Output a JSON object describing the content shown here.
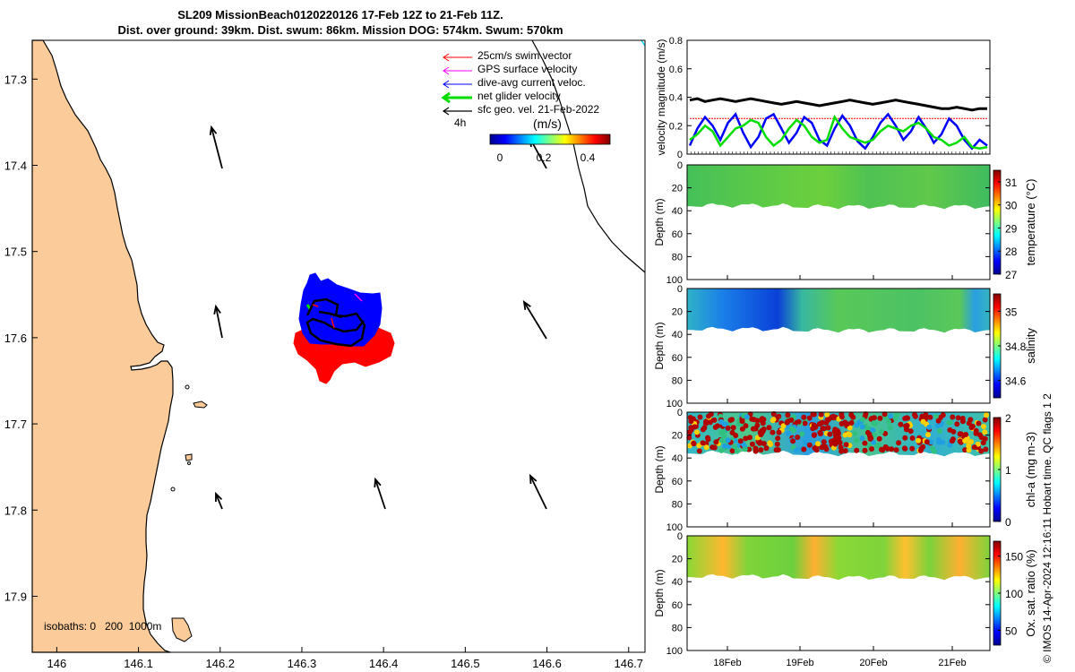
{
  "header": {
    "title_line1": "SL209 MissionBeach0120220126 17-Feb 12Z to 21-Feb 11Z.",
    "title_line2": "Dist. over ground: 39km. Dist. swum: 86km. Mission DOG: 574km. Swum: 570km"
  },
  "map": {
    "xticks": [
      "146",
      "146.1",
      "146.2",
      "146.3",
      "146.4",
      "146.5",
      "146.6",
      "146.7"
    ],
    "xtick_values": [
      146,
      146.1,
      146.2,
      146.3,
      146.4,
      146.5,
      146.6,
      146.7
    ],
    "yticks": [
      "17.3",
      "17.4",
      "17.5",
      "17.6",
      "17.7",
      "17.8",
      "17.9"
    ],
    "yticks_values": [
      17.3,
      17.4,
      17.5,
      17.6,
      17.7,
      17.8,
      17.9
    ],
    "legend": [
      {
        "label": "25cm/s swim vector",
        "color": "#ff0000"
      },
      {
        "label": "GPS surface velocity",
        "color": "#ff00ff"
      },
      {
        "label": "dive-avg current veloc.",
        "color": "#0000ff"
      },
      {
        "label": "net glider velocity",
        "color": "#00dd00"
      },
      {
        "label": "sfc geo. vel. 21-Feb-2022",
        "color": "#000000"
      }
    ],
    "interval_label": "4h",
    "colorbar_unit": "(m/s)",
    "colorbar_ticks": [
      "0",
      "0.2",
      "0.4"
    ],
    "isobaths_label": "isobaths: 0   200  1000m",
    "land_color": "#fbcb9a"
  },
  "chart_data": [
    {
      "type": "line",
      "ylabel": "velocity magnitude (m/s)",
      "ylim": [
        0,
        0.8
      ],
      "yticks": [
        "0",
        "0.2",
        "0.4",
        "0.6",
        "0.8"
      ],
      "series": [
        {
          "color": "#000000",
          "values": [
            0.38,
            0.39,
            0.37,
            0.38,
            0.39,
            0.38,
            0.37,
            0.38,
            0.39,
            0.38,
            0.37,
            0.36,
            0.35,
            0.36,
            0.37,
            0.36,
            0.35,
            0.34,
            0.35,
            0.36,
            0.37,
            0.38,
            0.37,
            0.36,
            0.35,
            0.36,
            0.37,
            0.38,
            0.37,
            0.36,
            0.35,
            0.34,
            0.33,
            0.32,
            0.32,
            0.33,
            0.32,
            0.31,
            0.32,
            0.32
          ]
        },
        {
          "color": "#ff0000",
          "values": [
            0.25,
            0.25,
            0.25,
            0.25,
            0.25,
            0.25,
            0.25,
            0.25,
            0.25,
            0.25,
            0.25,
            0.25,
            0.25,
            0.25,
            0.25,
            0.25,
            0.25,
            0.25,
            0.25,
            0.25,
            0.25,
            0.25,
            0.25,
            0.25,
            0.25,
            0.25,
            0.25,
            0.25,
            0.25,
            0.25,
            0.25,
            0.25,
            0.25,
            0.25,
            0.25,
            0.25,
            0.25,
            0.25,
            0.25,
            0.25
          ]
        },
        {
          "color": "#0000ff",
          "values": [
            0.06,
            0.18,
            0.26,
            0.2,
            0.1,
            0.22,
            0.28,
            0.15,
            0.05,
            0.12,
            0.25,
            0.28,
            0.18,
            0.08,
            0.15,
            0.26,
            0.22,
            0.1,
            0.06,
            0.18,
            0.27,
            0.2,
            0.09,
            0.04,
            0.12,
            0.22,
            0.28,
            0.2,
            0.1,
            0.16,
            0.26,
            0.18,
            0.08,
            0.14,
            0.25,
            0.2,
            0.1,
            0.04,
            0.1,
            0.06
          ]
        },
        {
          "color": "#00dd00",
          "values": [
            0.1,
            0.14,
            0.2,
            0.16,
            0.06,
            0.12,
            0.18,
            0.2,
            0.24,
            0.22,
            0.12,
            0.06,
            0.1,
            0.18,
            0.24,
            0.2,
            0.12,
            0.08,
            0.1,
            0.26,
            0.18,
            0.12,
            0.1,
            0.08,
            0.1,
            0.16,
            0.2,
            0.18,
            0.16,
            0.2,
            0.22,
            0.18,
            0.12,
            0.1,
            0.06,
            0.08,
            0.12,
            0.05,
            0.04,
            0.05
          ]
        }
      ]
    },
    {
      "type": "heatmap",
      "ylabel": "Depth (m)",
      "clabel": "temperature (°C)",
      "ctick_labels": [
        "27",
        "28",
        "29",
        "30",
        "31"
      ],
      "clim": [
        27,
        31.5
      ],
      "yticks": [
        "0",
        "20",
        "40",
        "60",
        "80",
        "100"
      ]
    },
    {
      "type": "heatmap",
      "ylabel": "Depth (m)",
      "clabel": "salinity",
      "ctick_labels": [
        "34.6",
        "34.8",
        "35"
      ],
      "clim": [
        34.5,
        35.1
      ],
      "yticks": [
        "0",
        "20",
        "40",
        "60",
        "80",
        "100"
      ]
    },
    {
      "type": "heatmap",
      "ylabel": "Depth (m)",
      "clabel": "chl-a (mg m-3)",
      "ctick_labels": [
        "0",
        "1",
        "2"
      ],
      "clim": [
        0,
        2
      ],
      "yticks": [
        "0",
        "20",
        "40",
        "60",
        "80",
        "100"
      ]
    },
    {
      "type": "heatmap",
      "ylabel": "Depth (m)",
      "clabel": "Ox. sat. ratio (%)",
      "ctick_labels": [
        "50",
        "100",
        "150"
      ],
      "clim": [
        30,
        170
      ],
      "yticks": [
        "0",
        "20",
        "40",
        "60",
        "80",
        "100"
      ],
      "xtick_labels": [
        "18Feb",
        "19Feb",
        "20Feb",
        "21Feb"
      ]
    }
  ],
  "side_note": "© IMOS 14-Apr-2024 12:16:11 Hobart time. QC flags 1  2"
}
